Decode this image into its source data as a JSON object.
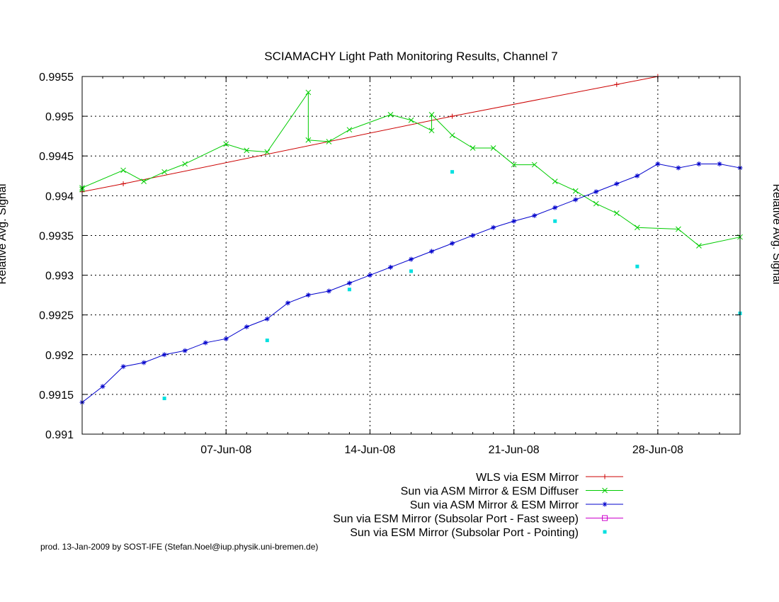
{
  "chart_data": {
    "type": "line",
    "title": "SCIAMACHY Light Path Monitoring Results, Channel 7",
    "ylabel": "Relative Avg. Signal",
    "y2label": "Relative Avg. Signal",
    "xlim": [
      "2008-05-31",
      "2008-07-02"
    ],
    "ylim": [
      0.991,
      0.9955
    ],
    "yticks": [
      0.991,
      0.9915,
      0.992,
      0.9925,
      0.993,
      0.9935,
      0.994,
      0.9945,
      0.995,
      0.9955
    ],
    "ytick_labels": [
      "0.991",
      "0.9915",
      "0.992",
      "0.9925",
      "0.993",
      "0.9935",
      "0.994",
      "0.9945",
      "0.995",
      "0.9955"
    ],
    "xticks": [
      {
        "date": "2008-06-07",
        "label": "07-Jun-08"
      },
      {
        "date": "2008-06-14",
        "label": "14-Jun-08"
      },
      {
        "date": "2008-06-21",
        "label": "21-Jun-08"
      },
      {
        "date": "2008-06-28",
        "label": "28-Jun-08"
      }
    ],
    "grid": true,
    "legend_position": "bottom-right",
    "series": [
      {
        "name": "WLS via ESM Mirror",
        "color": "#cc0000",
        "marker": "plus",
        "points": [
          {
            "x": "2008-05-31",
            "y": 0.99405
          },
          {
            "x": "2008-06-02",
            "y": 0.99415
          },
          {
            "x": "2008-06-18",
            "y": 0.995
          },
          {
            "x": "2008-06-26",
            "y": 0.9954
          },
          {
            "x": "2008-06-28",
            "y": 0.9955
          }
        ]
      },
      {
        "name": "Sun via ASM Mirror & ESM Diffuser",
        "color": "#00cc00",
        "marker": "x",
        "points": [
          {
            "x": "2008-05-31",
            "y": 0.99408
          },
          {
            "x": "2008-05-31",
            "y": 0.9941
          },
          {
            "x": "2008-06-02",
            "y": 0.99432
          },
          {
            "x": "2008-06-03",
            "y": 0.99418
          },
          {
            "x": "2008-06-04",
            "y": 0.9943
          },
          {
            "x": "2008-06-05",
            "y": 0.9944
          },
          {
            "x": "2008-06-07",
            "y": 0.99465
          },
          {
            "x": "2008-06-08",
            "y": 0.99457
          },
          {
            "x": "2008-06-09",
            "y": 0.99455
          },
          {
            "x": "2008-06-11",
            "y": 0.9953
          },
          {
            "x": "2008-06-11",
            "y": 0.9947
          },
          {
            "x": "2008-06-12",
            "y": 0.99468
          },
          {
            "x": "2008-06-13",
            "y": 0.99483
          },
          {
            "x": "2008-06-15",
            "y": 0.99502
          },
          {
            "x": "2008-06-16",
            "y": 0.99495
          },
          {
            "x": "2008-06-17",
            "y": 0.99482
          },
          {
            "x": "2008-06-17",
            "y": 0.99502
          },
          {
            "x": "2008-06-18",
            "y": 0.99476
          },
          {
            "x": "2008-06-19",
            "y": 0.9946
          },
          {
            "x": "2008-06-20",
            "y": 0.9946
          },
          {
            "x": "2008-06-21",
            "y": 0.99439
          },
          {
            "x": "2008-06-22",
            "y": 0.99439
          },
          {
            "x": "2008-06-23",
            "y": 0.99418
          },
          {
            "x": "2008-06-24",
            "y": 0.99406
          },
          {
            "x": "2008-06-25",
            "y": 0.9939
          },
          {
            "x": "2008-06-26",
            "y": 0.99378
          },
          {
            "x": "2008-06-27",
            "y": 0.9936
          },
          {
            "x": "2008-06-29",
            "y": 0.99358
          },
          {
            "x": "2008-06-30",
            "y": 0.99337
          },
          {
            "x": "2008-07-02",
            "y": 0.99348
          }
        ]
      },
      {
        "name": "Sun via ASM Mirror & ESM Mirror",
        "color": "#0000cc",
        "marker": "star",
        "points": [
          {
            "x": "2008-05-31",
            "y": 0.9914
          },
          {
            "x": "2008-06-01",
            "y": 0.9916
          },
          {
            "x": "2008-06-02",
            "y": 0.99185
          },
          {
            "x": "2008-06-03",
            "y": 0.9919
          },
          {
            "x": "2008-06-04",
            "y": 0.992
          },
          {
            "x": "2008-06-05",
            "y": 0.99205
          },
          {
            "x": "2008-06-06",
            "y": 0.99215
          },
          {
            "x": "2008-06-07",
            "y": 0.9922
          },
          {
            "x": "2008-06-08",
            "y": 0.99235
          },
          {
            "x": "2008-06-09",
            "y": 0.99245
          },
          {
            "x": "2008-06-10",
            "y": 0.99265
          },
          {
            "x": "2008-06-11",
            "y": 0.99275
          },
          {
            "x": "2008-06-12",
            "y": 0.9928
          },
          {
            "x": "2008-06-13",
            "y": 0.9929
          },
          {
            "x": "2008-06-14",
            "y": 0.993
          },
          {
            "x": "2008-06-15",
            "y": 0.9931
          },
          {
            "x": "2008-06-16",
            "y": 0.9932
          },
          {
            "x": "2008-06-17",
            "y": 0.9933
          },
          {
            "x": "2008-06-18",
            "y": 0.9934
          },
          {
            "x": "2008-06-19",
            "y": 0.9935
          },
          {
            "x": "2008-06-20",
            "y": 0.9936
          },
          {
            "x": "2008-06-21",
            "y": 0.99368
          },
          {
            "x": "2008-06-22",
            "y": 0.99375
          },
          {
            "x": "2008-06-23",
            "y": 0.99385
          },
          {
            "x": "2008-06-24",
            "y": 0.99395
          },
          {
            "x": "2008-06-25",
            "y": 0.99405
          },
          {
            "x": "2008-06-26",
            "y": 0.99415
          },
          {
            "x": "2008-06-27",
            "y": 0.99425
          },
          {
            "x": "2008-06-28",
            "y": 0.9944
          },
          {
            "x": "2008-06-29",
            "y": 0.99435
          },
          {
            "x": "2008-06-30",
            "y": 0.9944
          },
          {
            "x": "2008-07-01",
            "y": 0.9944
          },
          {
            "x": "2008-07-02",
            "y": 0.99435
          }
        ]
      },
      {
        "name": "Sun via ESM Mirror (Subsolar Port - Fast sweep)",
        "color": "#cc00cc",
        "marker": "square",
        "points": []
      },
      {
        "name": "Sun via ESM Mirror (Subsolar Port - Pointing)",
        "color": "#00e0e0",
        "marker": "filled-square",
        "points": [
          {
            "x": "2008-06-04",
            "y": 0.99145
          },
          {
            "x": "2008-06-09",
            "y": 0.99218
          },
          {
            "x": "2008-06-13",
            "y": 0.99282
          },
          {
            "x": "2008-06-16",
            "y": 0.99305
          },
          {
            "x": "2008-06-18",
            "y": 0.9943
          },
          {
            "x": "2008-06-23",
            "y": 0.99368
          },
          {
            "x": "2008-06-27",
            "y": 0.99311
          },
          {
            "x": "2008-07-02",
            "y": 0.99252
          }
        ]
      }
    ]
  },
  "footer": {
    "credit": "prod. 13-Jan-2009 by SOST-IFE (Stefan.Noel@iup.physik.uni-bremen.de)"
  }
}
